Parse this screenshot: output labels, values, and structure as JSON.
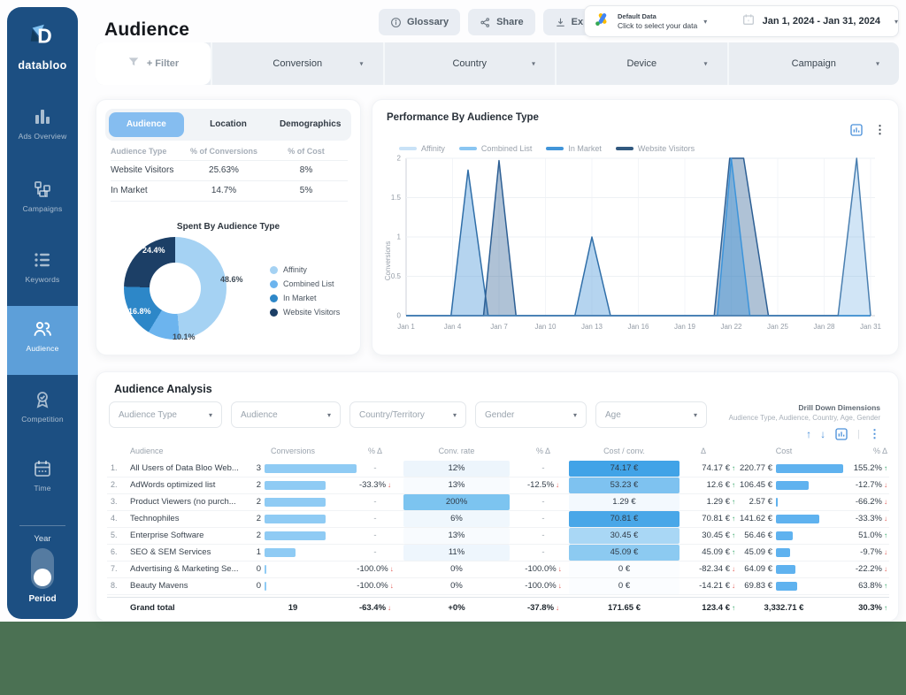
{
  "colors": {
    "sidebar": "#1c4f82",
    "accent": "#5d9fd9",
    "tab_active": "#85bdf0",
    "footer": "#4b7153",
    "positive": "#27a05f",
    "negative": "#e25650",
    "conv_bar": "#8fcbf4",
    "cost_bar": "#5fb2ef"
  },
  "sidebar": {
    "logo_text": "databloo",
    "items": [
      {
        "id": "ads-overview",
        "label": "Ads Overview",
        "icon": "bar-chart-icon",
        "active": false
      },
      {
        "id": "campaigns",
        "label": "Campaigns",
        "icon": "org-chart-icon",
        "active": false
      },
      {
        "id": "keywords",
        "label": "Keywords",
        "icon": "list-icon",
        "active": false
      },
      {
        "id": "audience",
        "label": "Audience",
        "icon": "people-icon",
        "active": true
      },
      {
        "id": "competition",
        "label": "Competition",
        "icon": "medal-icon",
        "active": false
      },
      {
        "id": "time",
        "label": "Time",
        "icon": "calendar-icon",
        "active": false
      }
    ],
    "toggle": {
      "top_label": "Year",
      "bottom_label": "Period",
      "state": "period"
    }
  },
  "header": {
    "title": "Audience",
    "buttons": [
      {
        "label": "Glossary",
        "icon": "info-icon"
      },
      {
        "label": "Share",
        "icon": "share-icon"
      },
      {
        "label": "Export",
        "icon": "download-icon"
      }
    ],
    "data_source": {
      "title": "Default Data",
      "subtitle": "Click to select your data",
      "icon": "google-ads-icon"
    },
    "date_range": "Jan 1, 2024 - Jan 31, 2024"
  },
  "filters": {
    "add_label": "+ Filter",
    "dropdowns": [
      "Conversion",
      "Country",
      "Device",
      "Campaign"
    ]
  },
  "audience_panel": {
    "tabs": [
      {
        "label": "Audience",
        "active": true
      },
      {
        "label": "Location",
        "active": false
      },
      {
        "label": "Demographics",
        "active": false
      }
    ],
    "table": {
      "headers": [
        "Audience Type",
        "% of Conversions",
        "% of Cost"
      ],
      "rows": [
        [
          "Website Visitors",
          "25.63%",
          "8%"
        ],
        [
          "In Market",
          "14.7%",
          "5%"
        ]
      ]
    }
  },
  "analysis": {
    "title": "Audience Analysis",
    "dropdowns": [
      "Audience Type",
      "Audience",
      "Country/Territory",
      "Gender",
      "Age"
    ],
    "drilldown_title": "Drill Down Dimensions",
    "drilldown_subtitle": "Audience Type, Audience, Country, Age, Gender",
    "table": {
      "headers": [
        "Audience",
        "Conversions",
        "% Δ",
        "Conv. rate",
        "% Δ",
        "Cost / conv.",
        "Δ",
        "Cost",
        "% Δ"
      ],
      "rows": [
        {
          "idx": "1.",
          "audience": "All Users of Data Bloo Web...",
          "conversions": 3,
          "pct1": "-",
          "pct1_dir": "",
          "conv_rate": "12%",
          "rate_bg": "#edf5fc",
          "pct2": "-",
          "pct2_dir": "",
          "cost_conv": "74.17 €",
          "cc_bg": "#41a3e7",
          "delta": "74.17 €",
          "delta_dir": "up",
          "cost": "220.77 €",
          "cost_value": 220.77,
          "pct3": "155.2%",
          "pct3_dir": "up"
        },
        {
          "idx": "2.",
          "audience": "AdWords optimized list",
          "conversions": 2,
          "pct1": "-33.3%",
          "pct1_dir": "down",
          "conv_rate": "13%",
          "rate_bg": "#f8fbfe",
          "pct2": "-12.5%",
          "pct2_dir": "down",
          "cost_conv": "53.23 €",
          "cc_bg": "#7ec2f0",
          "delta": "12.6 €",
          "delta_dir": "up",
          "cost": "106.45 €",
          "cost_value": 106.45,
          "pct3": "-12.7%",
          "pct3_dir": "down"
        },
        {
          "idx": "3.",
          "audience": "Product Viewers (no purch...",
          "conversions": 2,
          "pct1": "-",
          "pct1_dir": "",
          "conv_rate": "200%",
          "rate_bg": "#7cc4f0",
          "pct2": "-",
          "pct2_dir": "",
          "cost_conv": "1.29 €",
          "cc_bg": "#f3f9fe",
          "delta": "1.29 €",
          "delta_dir": "up",
          "cost": "2.57 €",
          "cost_value": 2.57,
          "pct3": "-66.2%",
          "pct3_dir": "down"
        },
        {
          "idx": "4.",
          "audience": "Technophiles",
          "conversions": 2,
          "pct1": "-",
          "pct1_dir": "",
          "conv_rate": "6%",
          "rate_bg": "#f0f7fd",
          "pct2": "-",
          "pct2_dir": "",
          "cost_conv": "70.81 €",
          "cc_bg": "#49a7e8",
          "delta": "70.81 €",
          "delta_dir": "up",
          "cost": "141.62 €",
          "cost_value": 141.62,
          "pct3": "-33.3%",
          "pct3_dir": "down"
        },
        {
          "idx": "5.",
          "audience": "Enterprise Software",
          "conversions": 2,
          "pct1": "-",
          "pct1_dir": "",
          "conv_rate": "13%",
          "rate_bg": "#f8fbfe",
          "pct2": "-",
          "pct2_dir": "",
          "cost_conv": "30.45 €",
          "cc_bg": "#a9d7f5",
          "delta": "30.45 €",
          "delta_dir": "up",
          "cost": "56.46 €",
          "cost_value": 56.46,
          "pct3": "51.0%",
          "pct3_dir": "up"
        },
        {
          "idx": "6.",
          "audience": "SEO & SEM Services",
          "conversions": 1,
          "pct1": "-",
          "pct1_dir": "",
          "conv_rate": "11%",
          "rate_bg": "#eef6fd",
          "pct2": "-",
          "pct2_dir": "",
          "cost_conv": "45.09 €",
          "cc_bg": "#8ccaf1",
          "delta": "45.09 €",
          "delta_dir": "up",
          "cost": "45.09 €",
          "cost_value": 45.09,
          "pct3": "-9.7%",
          "pct3_dir": "down"
        },
        {
          "idx": "7.",
          "audience": "Advertising & Marketing Se...",
          "conversions": 0,
          "pct1": "-100.0%",
          "pct1_dir": "down",
          "conv_rate": "0%",
          "rate_bg": "#ffffff",
          "pct2": "-100.0%",
          "pct2_dir": "down",
          "cost_conv": "0 €",
          "cc_bg": "#fbfdff",
          "delta": "-82.34 €",
          "delta_dir": "down",
          "cost": "64.09 €",
          "cost_value": 64.09,
          "pct3": "-22.2%",
          "pct3_dir": "down"
        },
        {
          "idx": "8.",
          "audience": "Beauty Mavens",
          "conversions": 0,
          "pct1": "-100.0%",
          "pct1_dir": "down",
          "conv_rate": "0%",
          "rate_bg": "#ffffff",
          "pct2": "-100.0%",
          "pct2_dir": "down",
          "cost_conv": "0 €",
          "cc_bg": "#fbfdff",
          "delta": "-14.21 €",
          "delta_dir": "down",
          "cost": "69.83 €",
          "cost_value": 69.83,
          "pct3": "63.8%",
          "pct3_dir": "up"
        }
      ],
      "grand_total": {
        "label": "Grand total",
        "conversions": "19",
        "pct1": "-63.4%",
        "pct1_dir": "down",
        "conv_rate": "+0%",
        "pct2": "-37.8%",
        "pct2_dir": "down",
        "cost_conv": "171.65 €",
        "delta": "123.4 €",
        "delta_dir": "up",
        "cost": "3,332.71 €",
        "pct3": "30.3%",
        "pct3_dir": "up"
      }
    }
  },
  "chart_data": [
    {
      "type": "pie",
      "title": "Spent By Audience Type",
      "labels": [
        "Affinity",
        "Combined List",
        "In Market",
        "Website Visitors"
      ],
      "values": [
        48.6,
        10.1,
        16.8,
        24.4
      ],
      "colors": [
        "#a5d2f3",
        "#6cb4ee",
        "#2d87c8",
        "#1c3f66"
      ],
      "value_labels": [
        "48.6%",
        "10.1%",
        "16.8%",
        "24.4%"
      ],
      "value_label_colors": [
        "#3e4a56",
        "#3e4a56",
        "#ffffff",
        "#ffffff"
      ],
      "legend_position": "right"
    },
    {
      "type": "area",
      "title": "Performance By Audience Type",
      "ylabel": "Conversions",
      "ylim": [
        0,
        2
      ],
      "yticks": [
        0,
        0.5,
        1,
        1.5,
        2
      ],
      "xticks": {
        "days": [
          1,
          4,
          7,
          10,
          13,
          16,
          19,
          22,
          25,
          28,
          31
        ],
        "labels": [
          "Jan 1",
          "Jan 4",
          "Jan 7",
          "Jan 10",
          "Jan 13",
          "Jan 16",
          "Jan 19",
          "Jan 22",
          "Jan 25",
          "Jan 28",
          "Jan 31"
        ]
      },
      "draw_order": [
        2,
        3,
        1,
        0
      ],
      "series": [
        {
          "name": "Affinity",
          "legend_color": "#c9e2f7",
          "stroke": "#4a7fb0",
          "fill": "rgba(116,176,228,0.33)",
          "points": [
            [
              1,
              0
            ],
            [
              28.9,
              0
            ],
            [
              30.1,
              2
            ],
            [
              31,
              0
            ]
          ]
        },
        {
          "name": "Combined List",
          "legend_color": "#8ac6f2",
          "stroke": "#3d94da",
          "fill": "rgba(61,148,218,0.40)",
          "points": [
            [
              1,
              0
            ],
            [
              21.1,
              0
            ],
            [
              22,
              2
            ],
            [
              23.2,
              0
            ],
            [
              31,
              0
            ]
          ]
        },
        {
          "name": "In Market",
          "legend_color": "#4195d9",
          "stroke": "#2f6ea8",
          "fill": "rgba(90,160,220,0.45)",
          "points": [
            [
              1,
              0
            ],
            [
              3.9,
              0
            ],
            [
              5,
              1.85
            ],
            [
              6.3,
              0
            ],
            [
              11.9,
              0
            ],
            [
              13,
              1
            ],
            [
              14.2,
              0
            ],
            [
              31,
              0
            ]
          ]
        },
        {
          "name": "Website Visitors",
          "legend_color": "#32597f",
          "stroke": "#2d5f94",
          "fill": "rgba(45,95,148,0.38)",
          "points": [
            [
              1,
              0
            ],
            [
              6,
              0
            ],
            [
              7,
              1.97
            ],
            [
              8.1,
              0
            ],
            [
              20.9,
              0
            ],
            [
              21.9,
              2
            ],
            [
              22.8,
              2
            ],
            [
              24.4,
              0
            ],
            [
              31,
              0
            ]
          ]
        }
      ]
    }
  ]
}
